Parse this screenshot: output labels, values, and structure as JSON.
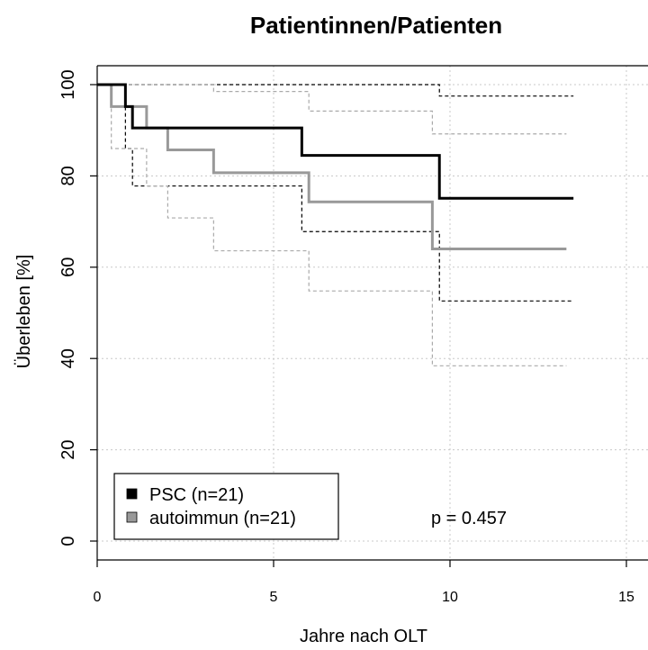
{
  "chart_data": {
    "type": "line",
    "title": "Patientinnen/Patienten",
    "xlabel": "Jahre nach OLT",
    "ylabel": "Überleben [%]",
    "xlim": [
      0,
      15
    ],
    "ylim": [
      0,
      100
    ],
    "x_ticks": [
      "0",
      "5",
      "10",
      "15"
    ],
    "y_ticks": [
      "0",
      "20",
      "40",
      "60",
      "80",
      "100"
    ],
    "grid": true,
    "legend_position": "bottom-left",
    "annotation": "p =  0.457",
    "series": [
      {
        "name": "PSC (n=21)",
        "color": "#000000",
        "step_x": [
          0,
          0.8,
          1.0,
          5.8,
          9.7,
          13.5
        ],
        "step_y": [
          100,
          95.2,
          90.5,
          84.5,
          75.1,
          75.1
        ],
        "ci_upper_x": [
          0,
          9.7,
          13.5
        ],
        "ci_upper_y": [
          100,
          97.5,
          97.5
        ],
        "ci_lower_x": [
          0,
          0.8,
          1.0,
          2.0,
          5.8,
          9.7,
          13.5
        ],
        "ci_lower_y": [
          100,
          86,
          77.8,
          77.8,
          67.8,
          52.6,
          52.6
        ]
      },
      {
        "name": "autoimmun (n=21)",
        "color": "#999999",
        "step_x": [
          0,
          0.4,
          1.4,
          2.0,
          3.3,
          6.0,
          9.5,
          13.3
        ],
        "step_y": [
          100,
          95.2,
          90.5,
          85.7,
          80.7,
          74.3,
          64.0,
          64.0
        ],
        "ci_upper_x": [
          0,
          3.3,
          6.0,
          9.5,
          13.3
        ],
        "ci_upper_y": [
          100,
          98.5,
          94.2,
          89.2,
          89.2
        ],
        "ci_lower_x": [
          0,
          0.4,
          1.4,
          2.0,
          3.3,
          6.0,
          9.5,
          13.3
        ],
        "ci_lower_y": [
          100,
          86,
          77.8,
          70.8,
          63.6,
          54.8,
          38.4,
          38.4
        ]
      }
    ]
  }
}
